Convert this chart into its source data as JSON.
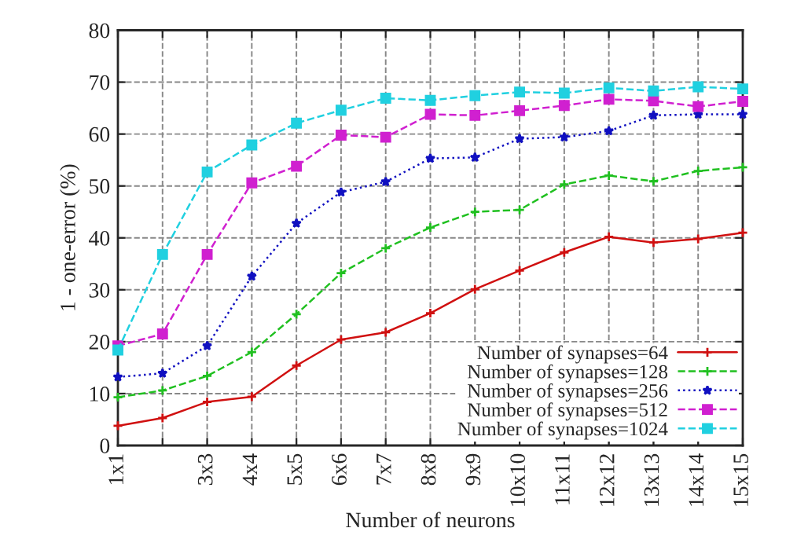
{
  "chart_data": {
    "type": "line",
    "xlabel": "Number of neurons",
    "ylabel": "1 - one-error (%)",
    "categories": [
      "1x1",
      null,
      "3x3",
      "4x4",
      "5x5",
      "6x6",
      "7x7",
      "8x8",
      "9x9",
      "10x10",
      "11x11",
      "12x12",
      "13x13",
      "14x14",
      "15x15"
    ],
    "ylim": [
      0,
      80
    ],
    "yticks": [
      0,
      10,
      20,
      30,
      40,
      50,
      60,
      70,
      80
    ],
    "grid": true,
    "legend": "bottom right",
    "series": [
      {
        "name": "Number of synapses=64",
        "color": "#d01010",
        "marker": "cross",
        "line_style": "solid",
        "values": [
          3.8,
          5.3,
          8.4,
          9.4,
          15.4,
          20.4,
          21.8,
          25.5,
          30.1,
          33.7,
          37.2,
          40.2,
          39.1,
          39.8,
          41.0
        ]
      },
      {
        "name": "Number of synapses=128",
        "color": "#20c020",
        "marker": "cross",
        "line_style": "dashed",
        "values": [
          9.3,
          10.6,
          13.4,
          18.0,
          25.3,
          33.2,
          38.0,
          42.0,
          45.0,
          45.4,
          50.3,
          52.0,
          50.9,
          52.9,
          53.6
        ]
      },
      {
        "name": "Number of synapses=256",
        "color": "#1010c0",
        "marker": "star",
        "line_style": "dotted",
        "values": [
          13.2,
          13.9,
          19.2,
          32.6,
          42.8,
          48.8,
          50.8,
          55.3,
          55.5,
          59.1,
          59.4,
          60.6,
          63.6,
          63.8,
          63.8
        ]
      },
      {
        "name": "Number of synapses=512",
        "color": "#d020d0",
        "marker": "square",
        "line_style": "dashed",
        "values": [
          19.2,
          21.5,
          36.8,
          50.6,
          53.8,
          59.8,
          59.4,
          63.8,
          63.6,
          64.5,
          65.5,
          66.7,
          66.4,
          65.3,
          66.3
        ]
      },
      {
        "name": "Number of synapses=1024",
        "color": "#20d0e0",
        "marker": "square",
        "line_style": "dashed",
        "values": [
          18.4,
          36.8,
          52.7,
          57.9,
          62.1,
          64.6,
          66.9,
          66.5,
          67.4,
          68.1,
          67.9,
          68.9,
          68.3,
          69.1,
          68.7
        ]
      }
    ]
  }
}
